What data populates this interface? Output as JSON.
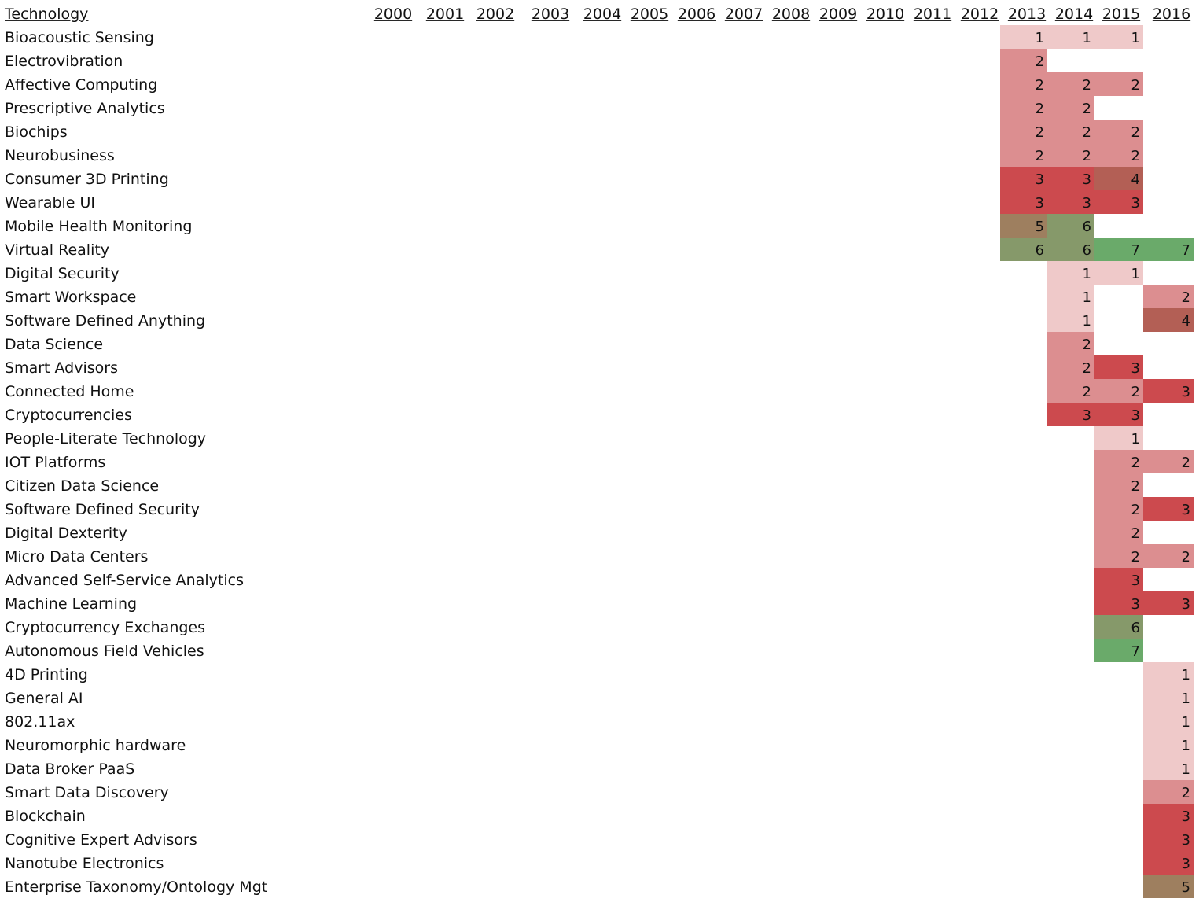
{
  "chart_data": {
    "type": "heatmap",
    "header_label": "Technology",
    "years": [
      "2000",
      "2001",
      "2002",
      "2003",
      "2004",
      "2005",
      "2006",
      "2007",
      "2008",
      "2009",
      "2010",
      "2011",
      "2012",
      "2013",
      "2014",
      "2015",
      "2016"
    ],
    "rows": [
      {
        "name": "Bioacoustic Sensing",
        "values": {
          "2013": 1,
          "2014": 1,
          "2015": 1
        }
      },
      {
        "name": "Electrovibration",
        "values": {
          "2013": 2
        }
      },
      {
        "name": "Affective Computing",
        "values": {
          "2013": 2,
          "2014": 2,
          "2015": 2
        }
      },
      {
        "name": "Prescriptive Analytics",
        "values": {
          "2013": 2,
          "2014": 2
        }
      },
      {
        "name": "Biochips",
        "values": {
          "2013": 2,
          "2014": 2,
          "2015": 2
        }
      },
      {
        "name": "Neurobusiness",
        "values": {
          "2013": 2,
          "2014": 2,
          "2015": 2
        }
      },
      {
        "name": "Consumer 3D Printing",
        "values": {
          "2013": 3,
          "2014": 3,
          "2015": 4
        }
      },
      {
        "name": "Wearable UI",
        "values": {
          "2013": 3,
          "2014": 3,
          "2015": 3
        }
      },
      {
        "name": "Mobile Health Monitoring",
        "values": {
          "2013": 5,
          "2014": 6
        }
      },
      {
        "name": "Virtual Reality",
        "values": {
          "2013": 6,
          "2014": 6,
          "2015": 7,
          "2016": 7
        }
      },
      {
        "name": "Digital Security",
        "values": {
          "2014": 1,
          "2015": 1
        }
      },
      {
        "name": "Smart Workspace",
        "values": {
          "2014": 1,
          "2016": 2
        }
      },
      {
        "name": "Software Defined Anything",
        "values": {
          "2014": 1,
          "2016": 4
        }
      },
      {
        "name": "Data Science",
        "values": {
          "2014": 2
        }
      },
      {
        "name": "Smart Advisors",
        "values": {
          "2014": 2,
          "2015": 3
        }
      },
      {
        "name": "Connected Home",
        "values": {
          "2014": 2,
          "2015": 2,
          "2016": 3
        }
      },
      {
        "name": "Cryptocurrencies",
        "values": {
          "2014": 3,
          "2015": 3
        }
      },
      {
        "name": "People-Literate Technology",
        "values": {
          "2015": 1
        }
      },
      {
        "name": "IOT Platforms",
        "values": {
          "2015": 2,
          "2016": 2
        }
      },
      {
        "name": "Citizen Data Science",
        "values": {
          "2015": 2
        }
      },
      {
        "name": "Software Defined Security",
        "values": {
          "2015": 2,
          "2016": 3
        }
      },
      {
        "name": "Digital Dexterity",
        "values": {
          "2015": 2
        }
      },
      {
        "name": "Micro Data Centers",
        "values": {
          "2015": 2,
          "2016": 2
        }
      },
      {
        "name": "Advanced Self-Service Analytics",
        "values": {
          "2015": 3
        }
      },
      {
        "name": "Machine Learning",
        "values": {
          "2015": 3,
          "2016": 3
        }
      },
      {
        "name": "Cryptocurrency Exchanges",
        "values": {
          "2015": 6
        }
      },
      {
        "name": "Autonomous Field Vehicles",
        "values": {
          "2015": 7
        }
      },
      {
        "name": "4D Printing",
        "values": {
          "2016": 1
        }
      },
      {
        "name": "General AI",
        "values": {
          "2016": 1
        }
      },
      {
        "name": "802.11ax",
        "values": {
          "2016": 1
        }
      },
      {
        "name": "Neuromorphic hardware",
        "values": {
          "2016": 1
        }
      },
      {
        "name": "Data Broker PaaS",
        "values": {
          "2016": 1
        }
      },
      {
        "name": "Smart Data Discovery",
        "values": {
          "2016": 2
        }
      },
      {
        "name": "Blockchain",
        "values": {
          "2016": 3
        }
      },
      {
        "name": "Cognitive Expert Advisors",
        "values": {
          "2016": 3
        }
      },
      {
        "name": "Nanotube Electronics",
        "values": {
          "2016": 3
        }
      },
      {
        "name": "Enterprise Taxonomy/Ontology Mgt",
        "values": {
          "2016": 5
        }
      }
    ],
    "value_range": [
      1,
      7
    ],
    "colors": {
      "1": "#efc9c9",
      "2": "#dc8e90",
      "3": "#cc4a4e",
      "4": "#b35f55",
      "5": "#9e7f5f",
      "6": "#86996a",
      "7": "#6aaa6a"
    },
    "grid": false
  }
}
